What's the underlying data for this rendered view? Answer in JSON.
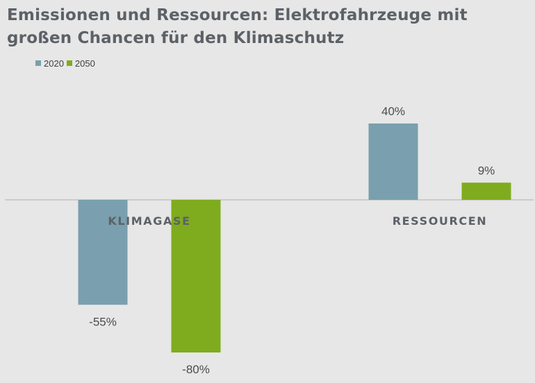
{
  "title": "Emissionen und Ressourcen: Elektrofahrzeuge mit großen Chancen für den Klimaschutz",
  "legend": {
    "items": [
      {
        "label": "2020",
        "color": "#7a9fae"
      },
      {
        "label": "2050",
        "color": "#7fac1e"
      }
    ],
    "placement": "top-left"
  },
  "chart_data": {
    "type": "bar",
    "title": "Emissionen und Ressourcen: Elektrofahrzeuge mit großen Chancen für den Klimaschutz",
    "categories": [
      "KLIMAGASE",
      "RESSOURCEN"
    ],
    "series": [
      {
        "name": "2020",
        "color": "#7a9fae",
        "values": [
          -55,
          40
        ],
        "labels": [
          "-55%",
          "40%"
        ]
      },
      {
        "name": "2050",
        "color": "#7fac1e",
        "values": [
          -80,
          9
        ],
        "labels": [
          "-80%",
          "9%"
        ]
      }
    ],
    "unit": "%",
    "ylim": [
      -80,
      40
    ],
    "grid": false,
    "legend": "top-left",
    "xlabel": "",
    "ylabel": ""
  }
}
